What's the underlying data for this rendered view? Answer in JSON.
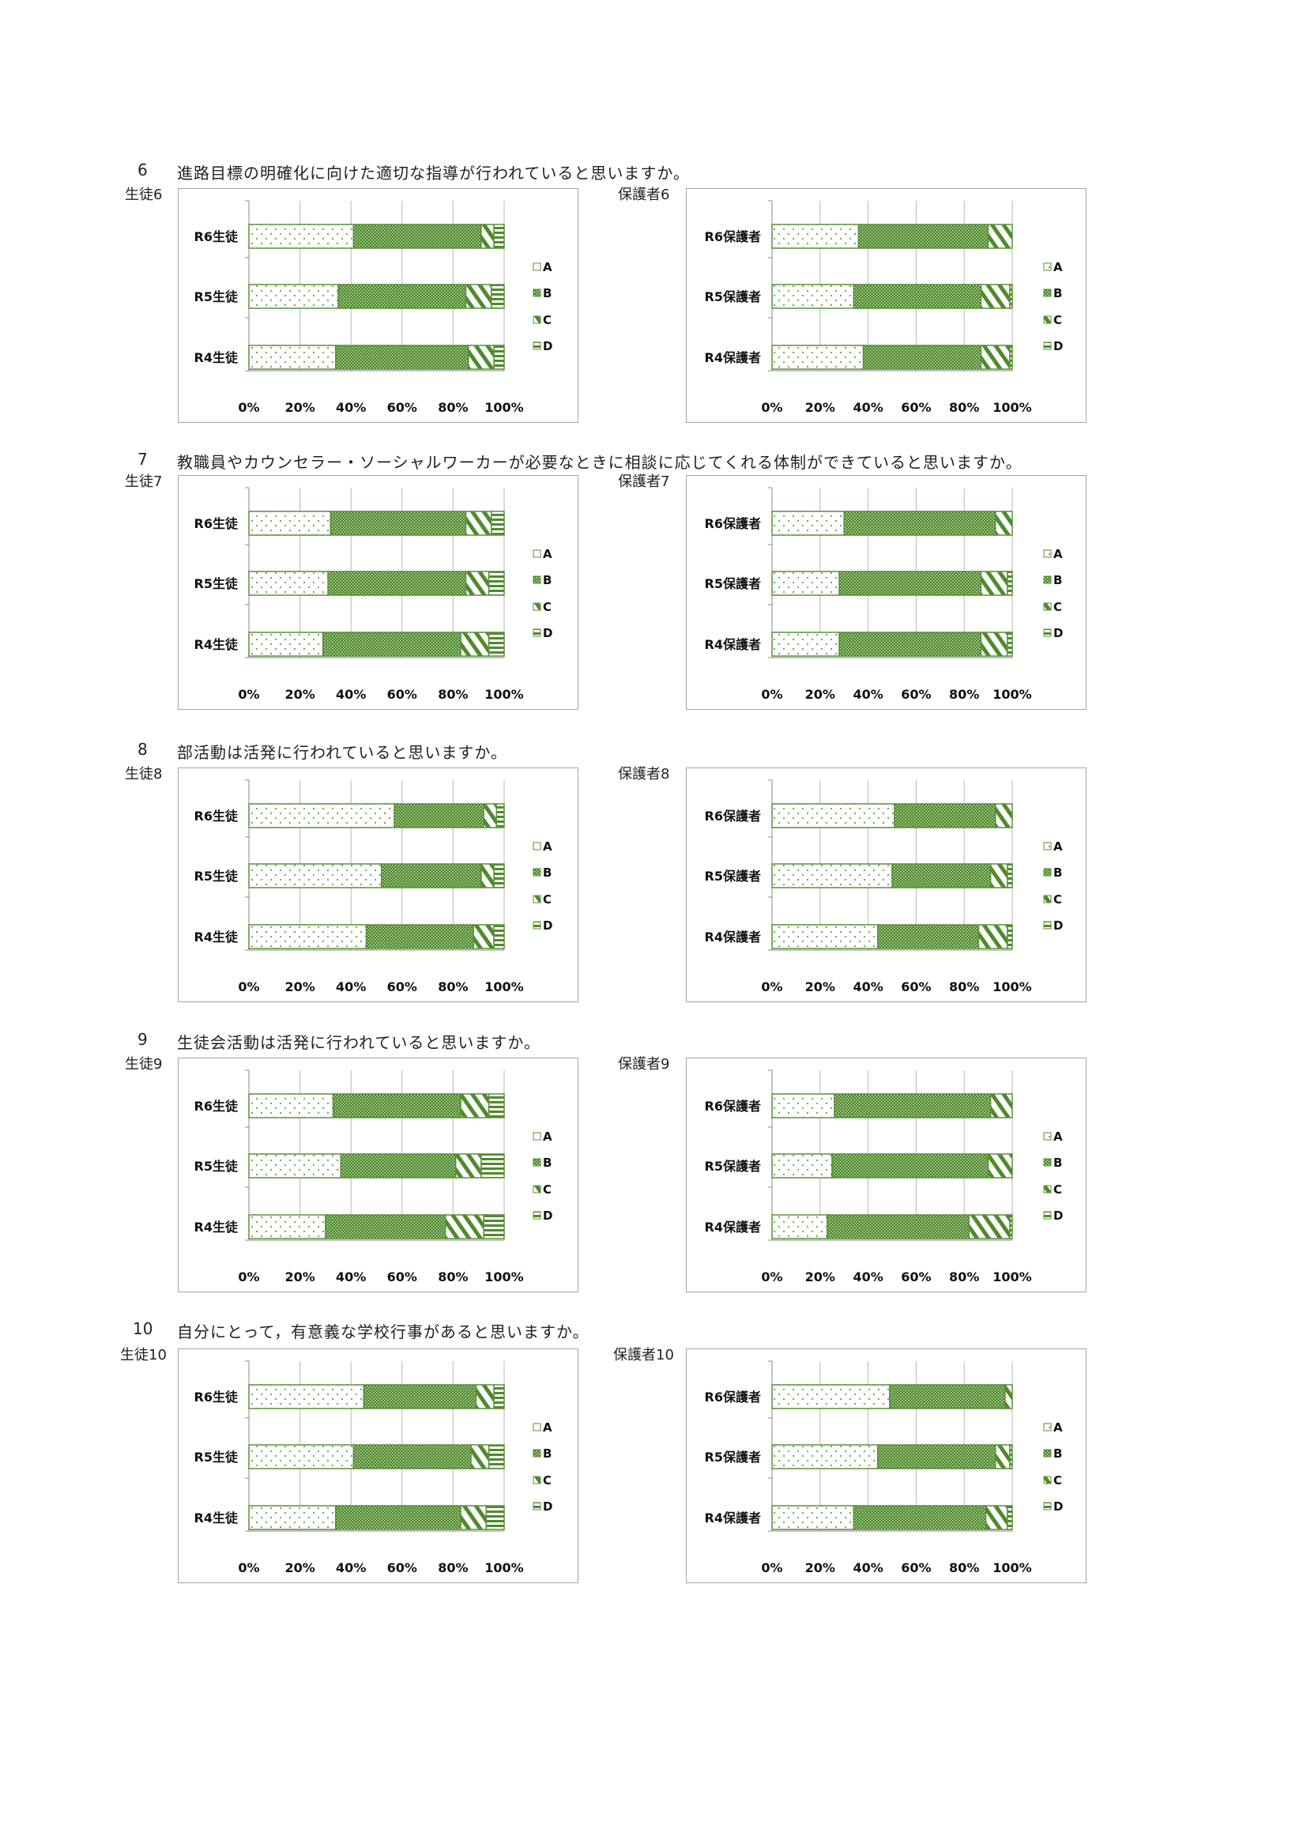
{
  "colors": {
    "green": "#4f8a2b",
    "border": "#5a8f3a",
    "grid": "#b7b7b7"
  },
  "legend": [
    "A",
    "B",
    "C",
    "D"
  ],
  "x_ticks": [
    "0%",
    "20%",
    "40%",
    "60%",
    "80%",
    "100%"
  ],
  "questions": [
    {
      "number": "6",
      "text": "進路目標の明確化に向けた適切な指導が行われていると思いますか。"
    },
    {
      "number": "7",
      "text": "教職員やカウンセラー・ソーシャルワーカーが必要なときに相談に応じてくれる体制ができていると思いますか。"
    },
    {
      "number": "8",
      "text": "部活動は活発に行われていると思いますか。"
    },
    {
      "number": "9",
      "text": "生徒会活動は活発に行われていると思いますか。"
    },
    {
      "number": "10",
      "text": "自分にとって，有意義な学校行事があると思いますか。"
    }
  ],
  "chart_data": [
    {
      "type": "bar",
      "stacked": true,
      "orientation": "horizontal",
      "title": "生徒6",
      "categories": [
        "R6生徒",
        "R5生徒",
        "R4生徒"
      ],
      "xlim": [
        0,
        100
      ],
      "legend_position": "right",
      "series": [
        {
          "name": "A",
          "values": [
            41,
            35,
            34
          ]
        },
        {
          "name": "B",
          "values": [
            50,
            50,
            52
          ]
        },
        {
          "name": "C",
          "values": [
            5,
            10,
            10
          ]
        },
        {
          "name": "D",
          "values": [
            4,
            5,
            4
          ]
        }
      ]
    },
    {
      "type": "bar",
      "stacked": true,
      "orientation": "horizontal",
      "title": "保護者6",
      "categories": [
        "R6保護者",
        "R5保護者",
        "R4保護者"
      ],
      "xlim": [
        0,
        100
      ],
      "legend_position": "right",
      "series": [
        {
          "name": "A",
          "values": [
            36,
            34,
            38
          ]
        },
        {
          "name": "B",
          "values": [
            54,
            53,
            49
          ]
        },
        {
          "name": "C",
          "values": [
            10,
            12,
            12
          ]
        },
        {
          "name": "D",
          "values": [
            0,
            1,
            1
          ]
        }
      ]
    },
    {
      "type": "bar",
      "stacked": true,
      "orientation": "horizontal",
      "title": "生徒7",
      "categories": [
        "R6生徒",
        "R5生徒",
        "R4生徒"
      ],
      "xlim": [
        0,
        100
      ],
      "legend_position": "right",
      "series": [
        {
          "name": "A",
          "values": [
            32,
            31,
            29
          ]
        },
        {
          "name": "B",
          "values": [
            53,
            54,
            54
          ]
        },
        {
          "name": "C",
          "values": [
            10,
            9,
            11
          ]
        },
        {
          "name": "D",
          "values": [
            5,
            6,
            6
          ]
        }
      ]
    },
    {
      "type": "bar",
      "stacked": true,
      "orientation": "horizontal",
      "title": "保護者7",
      "categories": [
        "R6保護者",
        "R5保護者",
        "R4保護者"
      ],
      "xlim": [
        0,
        100
      ],
      "legend_position": "right",
      "series": [
        {
          "name": "A",
          "values": [
            30,
            28,
            28
          ]
        },
        {
          "name": "B",
          "values": [
            63,
            59,
            59
          ]
        },
        {
          "name": "C",
          "values": [
            7,
            11,
            11
          ]
        },
        {
          "name": "D",
          "values": [
            0,
            2,
            2
          ]
        }
      ]
    },
    {
      "type": "bar",
      "stacked": true,
      "orientation": "horizontal",
      "title": "生徒8",
      "categories": [
        "R6生徒",
        "R5生徒",
        "R4生徒"
      ],
      "xlim": [
        0,
        100
      ],
      "legend_position": "right",
      "series": [
        {
          "name": "A",
          "values": [
            57,
            52,
            46
          ]
        },
        {
          "name": "B",
          "values": [
            35,
            39,
            42
          ]
        },
        {
          "name": "C",
          "values": [
            5,
            5,
            8
          ]
        },
        {
          "name": "D",
          "values": [
            3,
            4,
            4
          ]
        }
      ]
    },
    {
      "type": "bar",
      "stacked": true,
      "orientation": "horizontal",
      "title": "保護者8",
      "categories": [
        "R6保護者",
        "R5保護者",
        "R4保護者"
      ],
      "xlim": [
        0,
        100
      ],
      "legend_position": "right",
      "series": [
        {
          "name": "A",
          "values": [
            51,
            50,
            44
          ]
        },
        {
          "name": "B",
          "values": [
            42,
            41,
            42
          ]
        },
        {
          "name": "C",
          "values": [
            7,
            7,
            12
          ]
        },
        {
          "name": "D",
          "values": [
            0,
            2,
            2
          ]
        }
      ]
    },
    {
      "type": "bar",
      "stacked": true,
      "orientation": "horizontal",
      "title": "生徒9",
      "categories": [
        "R6生徒",
        "R5生徒",
        "R4生徒"
      ],
      "xlim": [
        0,
        100
      ],
      "legend_position": "right",
      "series": [
        {
          "name": "A",
          "values": [
            33,
            36,
            30
          ]
        },
        {
          "name": "B",
          "values": [
            50,
            45,
            47
          ]
        },
        {
          "name": "C",
          "values": [
            11,
            10,
            15
          ]
        },
        {
          "name": "D",
          "values": [
            6,
            9,
            8
          ]
        }
      ]
    },
    {
      "type": "bar",
      "stacked": true,
      "orientation": "horizontal",
      "title": "保護者9",
      "categories": [
        "R6保護者",
        "R5保護者",
        "R4保護者"
      ],
      "xlim": [
        0,
        100
      ],
      "legend_position": "right",
      "series": [
        {
          "name": "A",
          "values": [
            26,
            25,
            23
          ]
        },
        {
          "name": "B",
          "values": [
            65,
            65,
            59
          ]
        },
        {
          "name": "C",
          "values": [
            9,
            10,
            17
          ]
        },
        {
          "name": "D",
          "values": [
            0,
            0,
            1
          ]
        }
      ]
    },
    {
      "type": "bar",
      "stacked": true,
      "orientation": "horizontal",
      "title": "生徒10",
      "categories": [
        "R6生徒",
        "R5生徒",
        "R4生徒"
      ],
      "xlim": [
        0,
        100
      ],
      "legend_position": "right",
      "series": [
        {
          "name": "A",
          "values": [
            45,
            41,
            34
          ]
        },
        {
          "name": "B",
          "values": [
            44,
            46,
            49
          ]
        },
        {
          "name": "C",
          "values": [
            7,
            7,
            10
          ]
        },
        {
          "name": "D",
          "values": [
            4,
            6,
            7
          ]
        }
      ]
    },
    {
      "type": "bar",
      "stacked": true,
      "orientation": "horizontal",
      "title": "保護者10",
      "categories": [
        "R6保護者",
        "R5保護者",
        "R4保護者"
      ],
      "xlim": [
        0,
        100
      ],
      "legend_position": "right",
      "series": [
        {
          "name": "A",
          "values": [
            49,
            44,
            34
          ]
        },
        {
          "name": "B",
          "values": [
            48,
            49,
            55
          ]
        },
        {
          "name": "C",
          "values": [
            3,
            6,
            9
          ]
        },
        {
          "name": "D",
          "values": [
            0,
            1,
            2
          ]
        }
      ]
    }
  ]
}
